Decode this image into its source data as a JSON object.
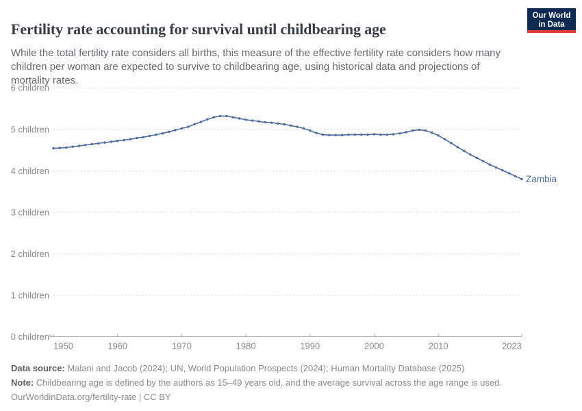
{
  "header": {
    "title": "Fertility rate accounting for survival until childbearing age",
    "subtitle": "While the total fertility rate considers all births, this measure of the effective fertility rate considers how many children per woman are expected to survive to childbearing age, using historical data and projections of mortality rates.",
    "logo_line1": "Our World",
    "logo_line2": "in Data",
    "logo_bg_color": "#0e2a52",
    "logo_accent_color": "#dc3c34"
  },
  "chart_data": {
    "type": "line",
    "title": "Fertility rate accounting for survival until childbearing age",
    "xlabel": "",
    "ylabel": "children",
    "xlim": [
      1950,
      2023
    ],
    "ylim": [
      0,
      6
    ],
    "grid": "horizontal-dashed",
    "legend": "end-of-line-label",
    "x_ticks": [
      1950,
      1960,
      1970,
      1980,
      1990,
      2000,
      2010,
      2023
    ],
    "y_ticks": [
      {
        "value": 0,
        "label": "0 children"
      },
      {
        "value": 1,
        "label": "1 children"
      },
      {
        "value": 2,
        "label": "2 children"
      },
      {
        "value": 3,
        "label": "3 children"
      },
      {
        "value": 4,
        "label": "4 children"
      },
      {
        "value": 5,
        "label": "5 children"
      },
      {
        "value": 6,
        "label": "6 children"
      }
    ],
    "x": [
      1950,
      1951,
      1952,
      1953,
      1954,
      1955,
      1956,
      1957,
      1958,
      1959,
      1960,
      1961,
      1962,
      1963,
      1964,
      1965,
      1966,
      1967,
      1968,
      1969,
      1970,
      1971,
      1972,
      1973,
      1974,
      1975,
      1976,
      1977,
      1978,
      1979,
      1980,
      1981,
      1982,
      1983,
      1984,
      1985,
      1986,
      1987,
      1988,
      1989,
      1990,
      1991,
      1992,
      1993,
      1994,
      1995,
      1996,
      1997,
      1998,
      1999,
      2000,
      2001,
      2002,
      2003,
      2004,
      2005,
      2006,
      2007,
      2008,
      2009,
      2010,
      2011,
      2012,
      2013,
      2014,
      2015,
      2016,
      2017,
      2018,
      2019,
      2020,
      2021,
      2022,
      2023
    ],
    "series": [
      {
        "name": "Zambia",
        "color": "#4C6A9C",
        "values": [
          4.54,
          4.55,
          4.56,
          4.58,
          4.6,
          4.62,
          4.64,
          4.66,
          4.68,
          4.7,
          4.72,
          4.74,
          4.76,
          4.79,
          4.81,
          4.84,
          4.87,
          4.9,
          4.94,
          4.98,
          5.02,
          5.06,
          5.12,
          5.18,
          5.24,
          5.29,
          5.32,
          5.32,
          5.29,
          5.26,
          5.23,
          5.21,
          5.19,
          5.17,
          5.16,
          5.14,
          5.12,
          5.09,
          5.06,
          5.02,
          4.97,
          4.91,
          4.87,
          4.86,
          4.86,
          4.86,
          4.87,
          4.87,
          4.87,
          4.87,
          4.88,
          4.87,
          4.87,
          4.88,
          4.9,
          4.93,
          4.97,
          4.99,
          4.97,
          4.92,
          4.85,
          4.76,
          4.67,
          4.57,
          4.48,
          4.39,
          4.31,
          4.23,
          4.15,
          4.08,
          4.01,
          3.94,
          3.87,
          3.8
        ]
      }
    ],
    "colors": {
      "gridline": "#dcdcde",
      "axis_line": "#a9a9a9",
      "tick_label": "#8b8b8b"
    }
  },
  "footer": {
    "data_source_label": "Data source:",
    "data_source_text": "Malani and Jacob (2024); UN, World Population Prospects (2024); Human Mortality Database (2025)",
    "note_label": "Note:",
    "note_text": "Childbearing age is defined by the authors as 15–49 years old, and the average survival across the age range is used.",
    "attribution": "OurWorldinData.org/fertility-rate | CC BY"
  }
}
